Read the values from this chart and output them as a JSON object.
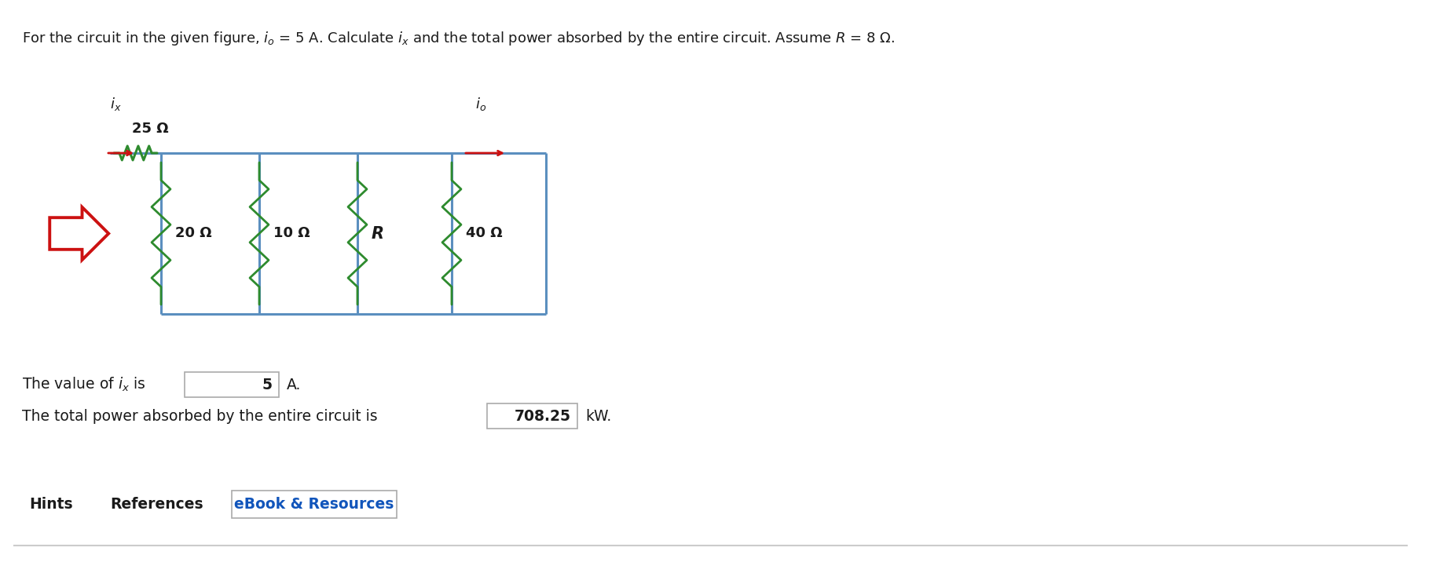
{
  "title_text": "For the circuit in the given figure, $i_o$ = 5 A. Calculate $i_x$ and the total power absorbed by the entire circuit. Assume $R$ = 8 Ω.",
  "background_color": "#ffffff",
  "circuit_color": "#5B8FBF",
  "resistor_color": "#2E8B2E",
  "arrow_color": "#cc1111",
  "text_color": "#1a1a1a",
  "res_25": "25 Ω",
  "res_20": "20 Ω",
  "res_10": "10 Ω",
  "res_R": "R",
  "res_40": "40 Ω",
  "answer_val1": "5",
  "answer_unit1": "A.",
  "answer_val2": "708.25",
  "answer_unit2": "kW.",
  "hint_text": "Hints",
  "ref_text": "References",
  "ebook_text": "eBook & Resources",
  "ebook_color": "#1155BB"
}
